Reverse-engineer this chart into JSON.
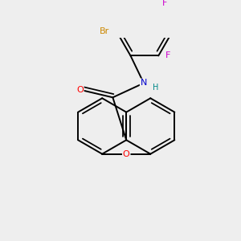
{
  "background_color": "#eeeeee",
  "atom_color_O": "#ff0000",
  "atom_color_N": "#0000cc",
  "atom_color_Br": "#cc8800",
  "atom_color_F": "#cc00cc",
  "atom_color_H": "#008888",
  "bond_color": "#000000",
  "bond_width": 1.4,
  "figsize": [
    3.0,
    3.0
  ],
  "dpi": 100,
  "xlim": [
    -2.5,
    2.5
  ],
  "ylim": [
    -2.6,
    2.6
  ]
}
